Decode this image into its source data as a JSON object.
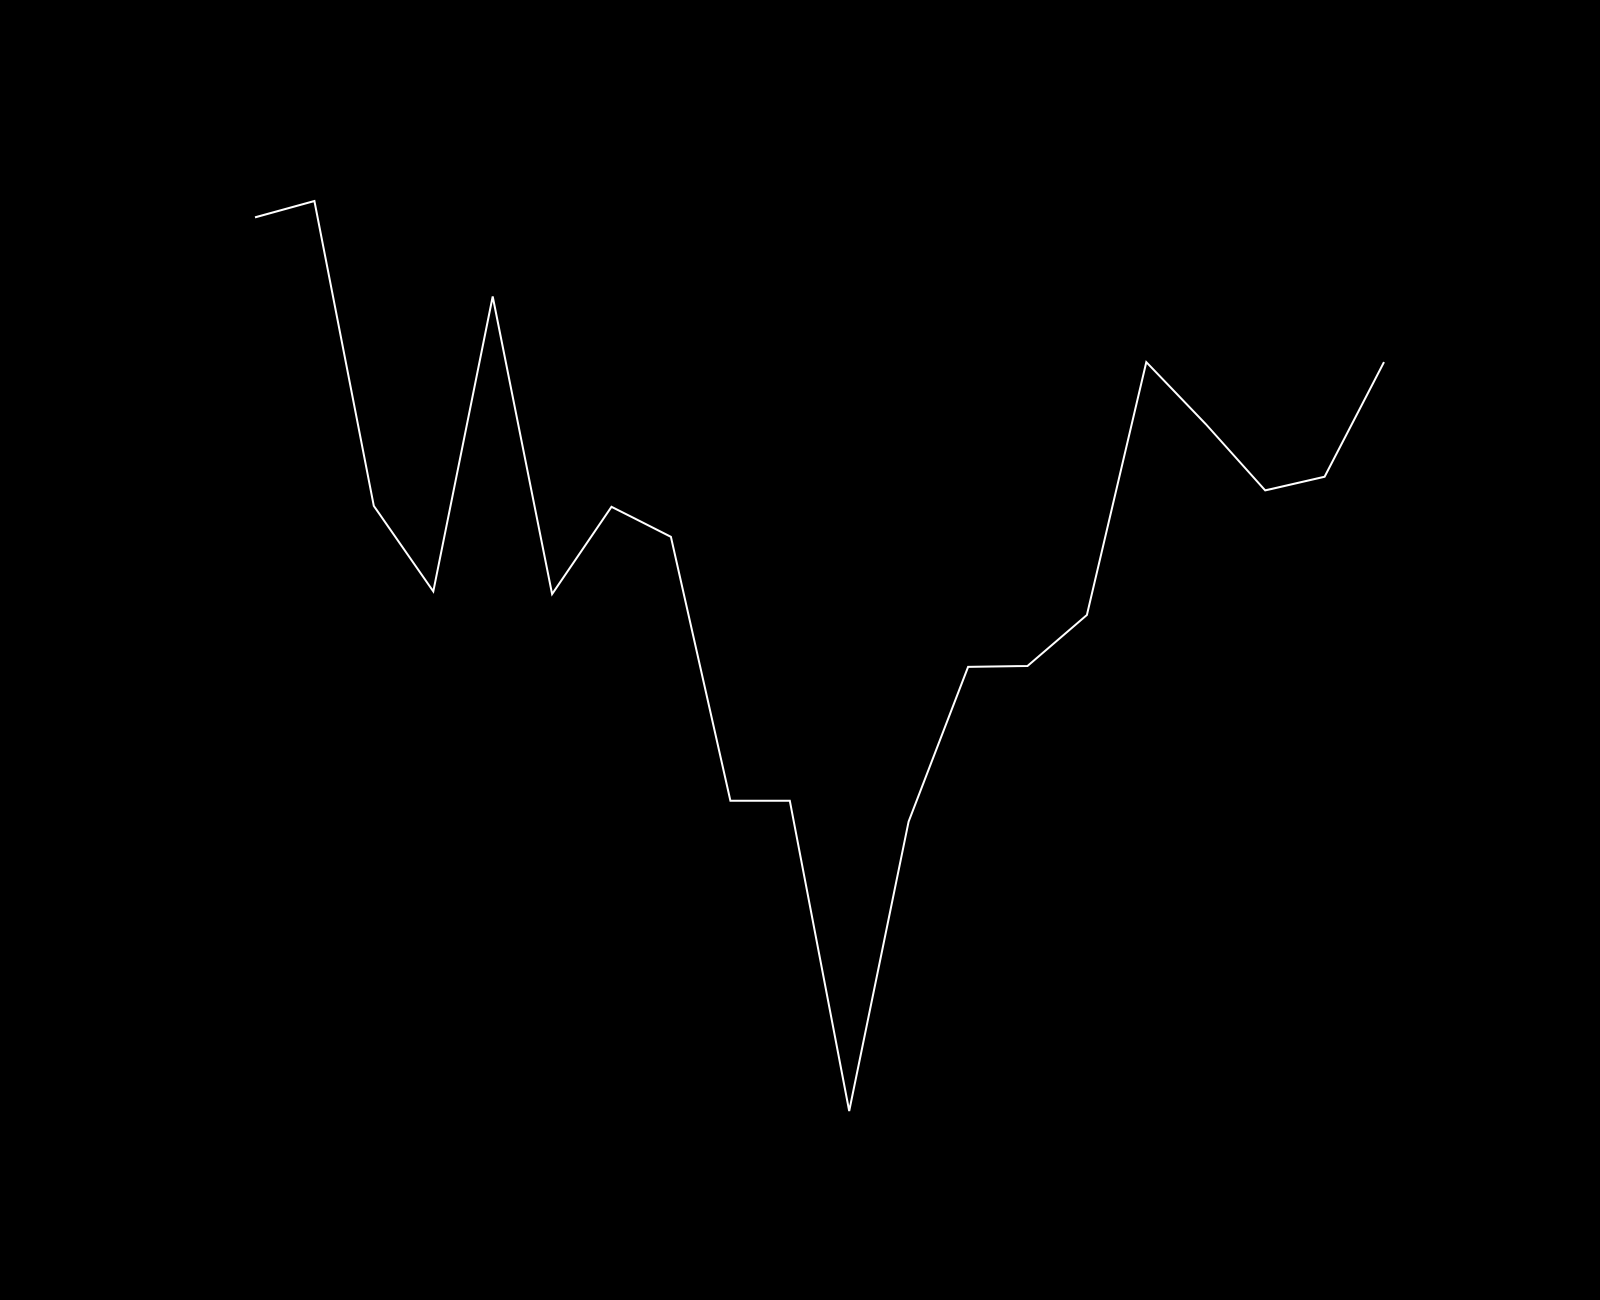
{
  "chart_data": {
    "type": "line",
    "categories": [
      null,
      null,
      null,
      null,
      null,
      null,
      null,
      null,
      null,
      null,
      null,
      null,
      null,
      null,
      null,
      null,
      null,
      null,
      null,
      null
    ],
    "values": [
      98.2,
      100,
      66.5,
      57.1,
      89.5,
      56.8,
      66.4,
      63.1,
      34.1,
      34.1,
      0,
      31.8,
      48.8,
      48.9,
      54.5,
      82.3,
      75.5,
      68.2,
      69.7,
      82.3
    ],
    "color": "#ffffff",
    "background": "#000000",
    "ylim": [
      0,
      100
    ]
  }
}
